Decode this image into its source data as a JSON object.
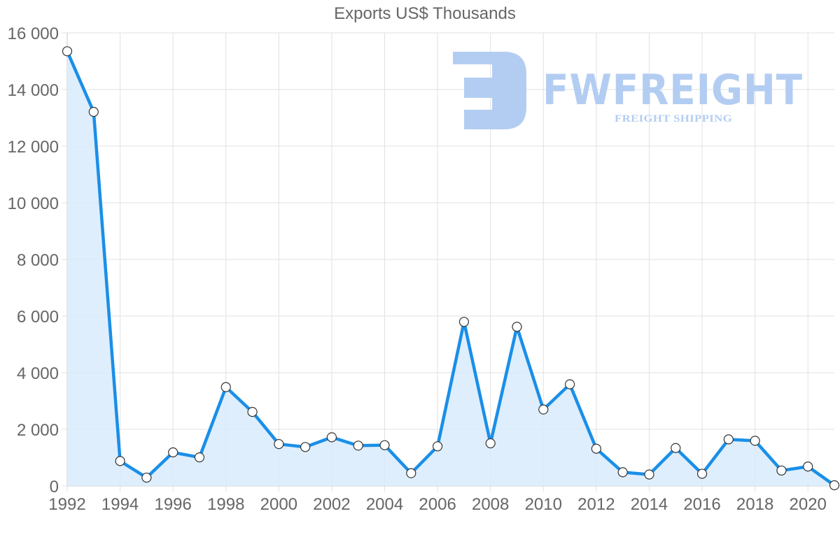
{
  "chart_data": {
    "type": "area",
    "title": "Exports US$ Thousands",
    "xlabel": "",
    "ylabel": "",
    "x": [
      1992,
      1993,
      1994,
      1995,
      1996,
      1997,
      1998,
      1999,
      2000,
      2001,
      2002,
      2003,
      2004,
      2005,
      2006,
      2007,
      2008,
      2009,
      2010,
      2011,
      2012,
      2013,
      2014,
      2015,
      2016,
      2017,
      2018,
      2019,
      2020,
      2021
    ],
    "series": [
      {
        "name": "Exports US$ Thousands",
        "values": [
          15350,
          13210,
          880,
          295,
          1185,
          1010,
          3490,
          2615,
          1480,
          1375,
          1720,
          1425,
          1440,
          450,
          1400,
          5795,
          1505,
          5620,
          2700,
          3590,
          1315,
          485,
          405,
          1340,
          430,
          1645,
          1595,
          545,
          685,
          25
        ]
      }
    ],
    "ylim": [
      0,
      16000
    ],
    "yticks": [
      "0",
      "2 000",
      "4 000",
      "6 000",
      "8 000",
      "10 000",
      "12 000",
      "14 000",
      "16 000"
    ],
    "ytick_values": [
      0,
      2000,
      4000,
      6000,
      8000,
      10000,
      12000,
      14000,
      16000
    ],
    "xticks": [
      "1992",
      "1994",
      "1996",
      "1998",
      "2000",
      "2002",
      "2004",
      "2006",
      "2008",
      "2010",
      "2012",
      "2014",
      "2016",
      "2018",
      "2020"
    ],
    "grid": true,
    "legend": "none",
    "colors": {
      "line": "#1a8fe8",
      "fill": "#d8ebfc",
      "point_fill": "#ffffff",
      "point_stroke": "#333333",
      "grid": "#e1e1e1",
      "text": "#666666"
    }
  },
  "watermark": {
    "brand": "FWFREIGHT",
    "tagline": "FREIGHT SHIPPING",
    "color": "#b3cdf2"
  }
}
